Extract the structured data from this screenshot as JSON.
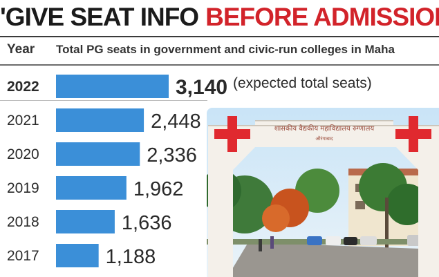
{
  "headline": {
    "part1": "'GIVE SEAT INFO",
    "part2": "BEFORE ADMISSIONS'"
  },
  "columns": {
    "year": "Year",
    "title": "Total PG seats in government and civic-run colleges in Maha"
  },
  "colors": {
    "bar": "#3b8fd8",
    "headline_red": "#d2232a",
    "text": "#2a2a2a"
  },
  "photo": {
    "gate_sign": "शासकीय वैद्यकीय महाविद्यालय रुग्णालय",
    "gate_subsign": "औरंगाबाद"
  },
  "chart_data": {
    "type": "bar",
    "orientation": "horizontal",
    "title": "Total PG seats in government and civic-run colleges in Maha",
    "ylabel": "Year",
    "categories": [
      "2022",
      "2021",
      "2020",
      "2019",
      "2018",
      "2017"
    ],
    "values": [
      3140,
      2448,
      2336,
      1962,
      1636,
      1188
    ],
    "labels": [
      "3,140",
      "2,448",
      "2,336",
      "1,962",
      "1,636",
      "1,188"
    ],
    "annotations": [
      {
        "category": "2022",
        "text": "(expected total seats)"
      }
    ],
    "xlim": [
      0,
      3140
    ],
    "grid": false
  }
}
